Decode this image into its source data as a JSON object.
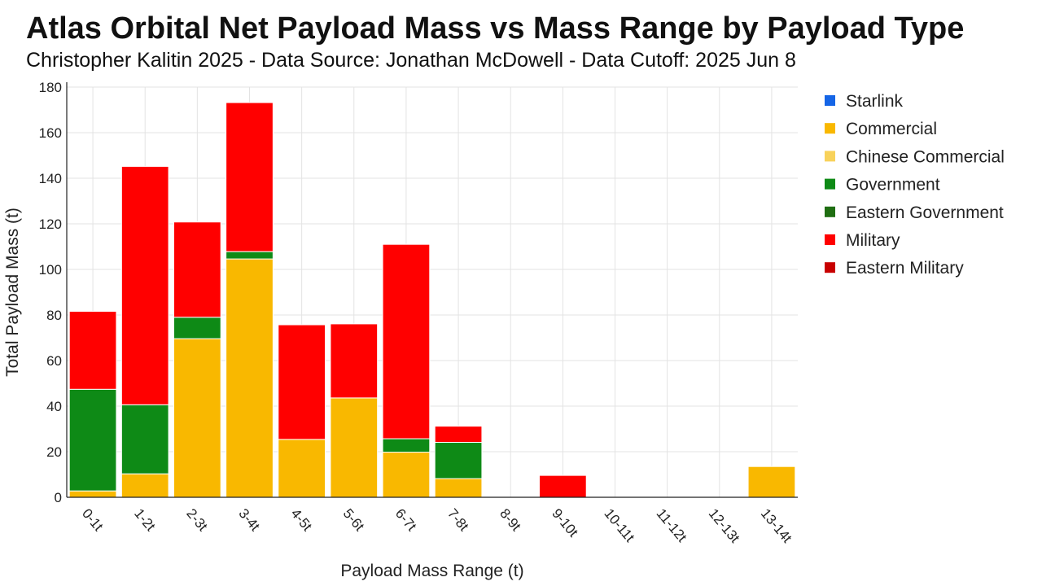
{
  "header": {
    "title": "Atlas Orbital Net Payload Mass vs Mass Range by Payload Type",
    "subtitle": "Christopher Kalitin 2025 - Data Source: Jonathan McDowell - Data Cutoff: 2025 Jun 8"
  },
  "chart_data": {
    "type": "bar",
    "stacked": true,
    "xlabel": "Payload Mass Range (t)",
    "ylabel": "Total Payload Mass (t)",
    "ylim": [
      0,
      180
    ],
    "yticks": [
      0,
      20,
      40,
      60,
      80,
      100,
      120,
      140,
      160,
      180
    ],
    "grid": true,
    "legend_position": "right",
    "categories": [
      "0-1t",
      "1-2t",
      "2-3t",
      "3-4t",
      "4-5t",
      "5-6t",
      "6-7t",
      "7-8t",
      "8-9t",
      "9-10t",
      "10-11t",
      "11-12t",
      "12-13t",
      "13-14t"
    ],
    "series": [
      {
        "name": "Starlink",
        "color": "#1565e6",
        "values": [
          0,
          0,
          0,
          0,
          0,
          0,
          0,
          0,
          0,
          0,
          0,
          0,
          0,
          0
        ]
      },
      {
        "name": "Commercial",
        "color": "#f9b800",
        "values": [
          2.8,
          10.3,
          69.6,
          104.6,
          25.4,
          43.6,
          19.8,
          8.2,
          0,
          0,
          0,
          0,
          0,
          13.5
        ]
      },
      {
        "name": "Chinese Commercial",
        "color": "#f8d25a",
        "values": [
          0,
          0,
          0,
          0,
          0,
          0,
          0,
          0,
          0,
          0,
          0,
          0,
          0,
          0
        ]
      },
      {
        "name": "Government",
        "color": "#0e8a16",
        "values": [
          44.6,
          30.3,
          9.4,
          3.2,
          0,
          0,
          5.9,
          15.9,
          0,
          0,
          0,
          0,
          0,
          0
        ]
      },
      {
        "name": "Eastern Government",
        "color": "#1f6e12",
        "values": [
          0,
          0,
          0,
          0,
          0,
          0,
          0,
          0,
          0,
          0,
          0,
          0,
          0,
          0
        ]
      },
      {
        "name": "Military",
        "color": "#ff0000",
        "values": [
          34.2,
          104.6,
          41.8,
          65.4,
          50.3,
          32.5,
          85.3,
          7.1,
          0,
          9.6,
          0,
          0,
          0,
          0
        ]
      },
      {
        "name": "Eastern Military",
        "color": "#c80000",
        "values": [
          0,
          0,
          0,
          0,
          0,
          0,
          0,
          0,
          0,
          0,
          0,
          0,
          0,
          0
        ]
      }
    ]
  }
}
